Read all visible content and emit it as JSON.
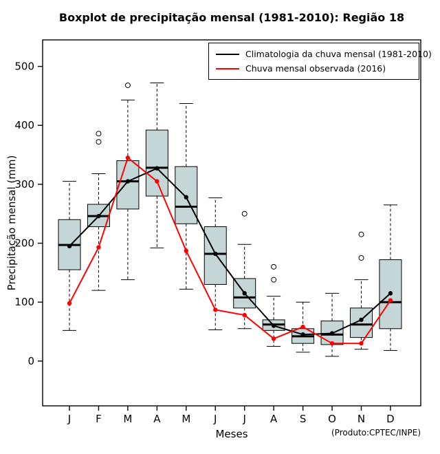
{
  "title": "Boxplot de precipitação mensal (1981-2010): Região 18",
  "xlabel": "Meses",
  "ylabel": "Precipitação mensal (mm)",
  "footnote": "(Produto:CPTEC/INPE)",
  "legend": [
    {
      "label": "Climatologia da chuva mensal (1981-2010)",
      "color": "#000000"
    },
    {
      "label": "Chuva mensal observada (2016)",
      "color": "#ff0000"
    }
  ],
  "chart_data": {
    "type": "boxplot",
    "title": "Boxplot de precipitação mensal (1981-2010): Região 18",
    "xlabel": "Meses",
    "ylabel": "Precipitação mensal (mm)",
    "categories": [
      "J",
      "F",
      "M",
      "A",
      "M",
      "J",
      "J",
      "A",
      "S",
      "O",
      "N",
      "D"
    ],
    "yticks": [
      0,
      100,
      200,
      300,
      400,
      500
    ],
    "ylim": [
      -76,
      545
    ],
    "grid": false,
    "legend_position": "top-right-inside",
    "box_fill": "#c4d6d6",
    "box_stroke": "#000000",
    "boxes": [
      {
        "low": 52,
        "q1": 155,
        "med": 197,
        "q3": 240,
        "high": 305,
        "outliers": []
      },
      {
        "low": 120,
        "q1": 228,
        "med": 246,
        "q3": 266,
        "high": 318,
        "outliers": [
          372,
          386
        ]
      },
      {
        "low": 138,
        "q1": 258,
        "med": 305,
        "q3": 340,
        "high": 443,
        "outliers": [
          468
        ]
      },
      {
        "low": 192,
        "q1": 280,
        "med": 328,
        "q3": 392,
        "high": 472,
        "outliers": []
      },
      {
        "low": 122,
        "q1": 233,
        "med": 262,
        "q3": 330,
        "high": 437,
        "outliers": []
      },
      {
        "low": 53,
        "q1": 130,
        "med": 182,
        "q3": 228,
        "high": 277,
        "outliers": []
      },
      {
        "low": 55,
        "q1": 90,
        "med": 108,
        "q3": 140,
        "high": 198,
        "outliers": [
          250
        ]
      },
      {
        "low": 25,
        "q1": 52,
        "med": 62,
        "q3": 70,
        "high": 110,
        "outliers": [
          138,
          160
        ]
      },
      {
        "low": 15,
        "q1": 30,
        "med": 42,
        "q3": 55,
        "high": 100,
        "outliers": []
      },
      {
        "low": 8,
        "q1": 28,
        "med": 45,
        "q3": 68,
        "high": 115,
        "outliers": []
      },
      {
        "low": 20,
        "q1": 40,
        "med": 62,
        "q3": 90,
        "high": 138,
        "outliers": [
          175,
          215
        ]
      },
      {
        "low": 18,
        "q1": 55,
        "med": 100,
        "q3": 172,
        "high": 265,
        "outliers": []
      }
    ],
    "series": [
      {
        "name": "Climatologia da chuva mensal (1981-2010)",
        "color": "#000000",
        "values": [
          195,
          246,
          305,
          327,
          278,
          182,
          115,
          60,
          45,
          47,
          70,
          115
        ]
      },
      {
        "name": "Chuva mensal observada (2016)",
        "color": "#ff0000",
        "values": [
          98,
          193,
          345,
          305,
          187,
          87,
          78,
          38,
          58,
          30,
          30,
          103
        ]
      }
    ]
  }
}
